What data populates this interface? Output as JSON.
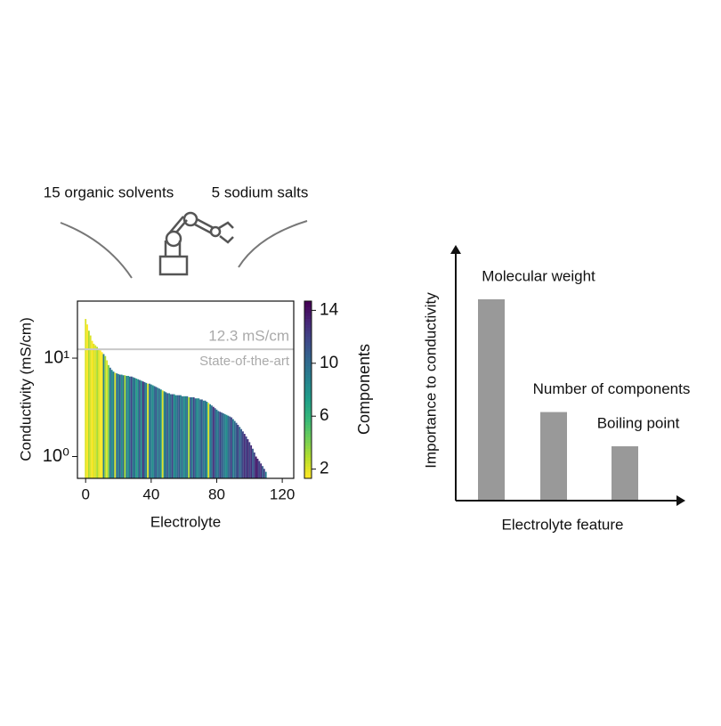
{
  "header": {
    "left_label": "15 organic solvents",
    "right_label": "5 sodium salts"
  },
  "chart_data": [
    {
      "type": "bar",
      "log_scale_y": true,
      "x_label": "Electrolyte",
      "y_label": "Conductivity (mS/cm)",
      "x": [
        0,
        1,
        2,
        3,
        4,
        5,
        6,
        7,
        8,
        9,
        10,
        11,
        12,
        13,
        14,
        15,
        16,
        17,
        18,
        19,
        20,
        21,
        22,
        23,
        24,
        25,
        26,
        27,
        28,
        29,
        30,
        31,
        32,
        33,
        34,
        35,
        36,
        37,
        38,
        39,
        40,
        41,
        42,
        43,
        44,
        45,
        46,
        47,
        48,
        49,
        50,
        51,
        52,
        53,
        54,
        55,
        56,
        57,
        58,
        59,
        60,
        61,
        62,
        63,
        64,
        65,
        66,
        67,
        68,
        69,
        70,
        71,
        72,
        73,
        74,
        75,
        76,
        77,
        78,
        79,
        80,
        81,
        82,
        83,
        84,
        85,
        86,
        87,
        88,
        89,
        90,
        91,
        92,
        93,
        94,
        95,
        96,
        97,
        98,
        99,
        100,
        101,
        102,
        103,
        104,
        105,
        106,
        107,
        108,
        109,
        110
      ],
      "values": [
        25,
        22,
        19,
        17,
        15,
        14,
        13.5,
        13,
        12.5,
        12,
        11.5,
        11,
        10.5,
        9.5,
        8.5,
        8,
        7.6,
        7.3,
        7.1,
        7,
        6.9,
        6.8,
        6.8,
        6.7,
        6.7,
        6.6,
        6.6,
        6.5,
        6.5,
        6.4,
        6.3,
        6.2,
        6.1,
        6,
        5.9,
        5.8,
        5.7,
        5.6,
        5.5,
        5.5,
        5.4,
        5.3,
        5.2,
        5.1,
        5,
        4.9,
        4.8,
        4.7,
        4.6,
        4.5,
        4.4,
        4.4,
        4.3,
        4.3,
        4.3,
        4.2,
        4.2,
        4.2,
        4.2,
        4.1,
        4.1,
        4.1,
        4.1,
        4,
        4,
        4,
        4,
        3.9,
        3.9,
        3.9,
        3.8,
        3.8,
        3.7,
        3.7,
        3.6,
        3.5,
        3.4,
        3.3,
        3.2,
        3.1,
        3,
        2.9,
        2.85,
        2.8,
        2.75,
        2.7,
        2.65,
        2.6,
        2.55,
        2.5,
        2.4,
        2.3,
        2.2,
        2.1,
        2,
        1.9,
        1.8,
        1.7,
        1.6,
        1.5,
        1.4,
        1.3,
        1.2,
        1.1,
        1,
        0.95,
        0.9,
        0.85,
        0.8,
        0.75,
        0.7
      ],
      "components": [
        2,
        1,
        3,
        2,
        1,
        2,
        2,
        3,
        2,
        1,
        1,
        9,
        3,
        2,
        4,
        10,
        8,
        9,
        2,
        10,
        9,
        11,
        8,
        10,
        3,
        9,
        8,
        10,
        12,
        9,
        10,
        7,
        9,
        11,
        8,
        13,
        10,
        9,
        2,
        10,
        9,
        8,
        10,
        11,
        9,
        10,
        8,
        2,
        9,
        10,
        11,
        9,
        10,
        12,
        8,
        9,
        10,
        11,
        9,
        10,
        8,
        9,
        10,
        3,
        11,
        9,
        12,
        10,
        8,
        9,
        10,
        11,
        9,
        10,
        8,
        2,
        9,
        10,
        13,
        11,
        9,
        10,
        12,
        11,
        10,
        9,
        8,
        10,
        11,
        12,
        9,
        10,
        11,
        12,
        10,
        11,
        12,
        13,
        12,
        13,
        12,
        13,
        11,
        12,
        14,
        13,
        12,
        13,
        11,
        12,
        9
      ],
      "colormap": "viridis_r",
      "colorbar": {
        "label": "Components",
        "lim": [
          1.3,
          14.7
        ],
        "ticks": [
          2,
          6,
          10,
          14
        ]
      },
      "xlim": [
        -5,
        127
      ],
      "xticks": [
        0,
        40,
        80,
        120
      ],
      "ylim": [
        0.6,
        38
      ],
      "yticks": [
        {
          "value": 1,
          "label": "10⁰"
        },
        {
          "value": 10,
          "label": "10¹"
        }
      ],
      "reference_line": {
        "value": 12.3,
        "label": "12.3 mS/cm",
        "note": "State-of-the-art",
        "color": "#c8c8c8"
      }
    },
    {
      "type": "bar",
      "x_label": "Electrolyte feature",
      "y_label": "Importance to conductivity",
      "categories": [
        "Molecular weight",
        "Number of components",
        "Boiling point"
      ],
      "values": [
        1,
        0.44,
        0.27
      ],
      "color": "#999999",
      "ylim": [
        0,
        1.27
      ]
    }
  ]
}
